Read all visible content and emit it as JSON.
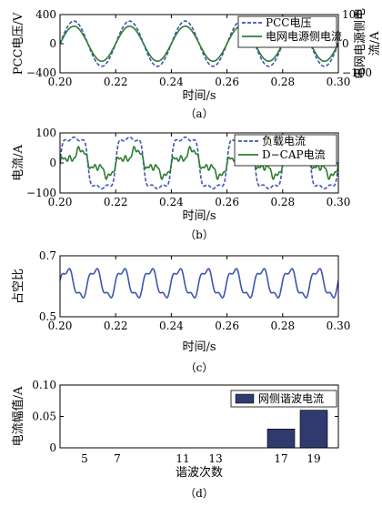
{
  "chart_data": [
    {
      "id": "a",
      "type": "line",
      "caption": "（a）",
      "xlabel": "时间/s",
      "ylabel": "PCC电压/V",
      "ylabel_right": "电网电源侧电流/A",
      "xlim": [
        0.2,
        0.3
      ],
      "ylim": [
        -400,
        400
      ],
      "ylim_right": [
        -100,
        100
      ],
      "xticks": [
        0.2,
        0.22,
        0.24,
        0.26,
        0.28,
        0.3
      ],
      "xtick_labels": [
        "0.20",
        "0.22",
        "0.24",
        "0.26",
        "0.28",
        "0.30"
      ],
      "yticks": [
        -400,
        0,
        400
      ],
      "ytick_labels": [
        "−400",
        "0",
        "400"
      ],
      "yticks_right": [
        -100,
        0,
        100
      ],
      "ytick_labels_right": [
        "−100",
        "0",
        "100"
      ],
      "legend_position": "top-right",
      "series": [
        {
          "name": "PCC电压",
          "axis": "left",
          "color": "#3d56b0",
          "dash": "4,2",
          "waveform": "sine",
          "amplitude": 311,
          "frequency_hz": 50,
          "phase_deg": 0
        },
        {
          "name": "电网电源侧电流",
          "axis": "right",
          "color": "#2e7d32",
          "dash": "",
          "waveform": "sine",
          "amplitude": 60,
          "frequency_hz": 50,
          "phase_deg": 0
        }
      ]
    },
    {
      "id": "b",
      "type": "line",
      "caption": "（b）",
      "xlabel": "时间/s",
      "ylabel": "电流/A",
      "xlim": [
        0.2,
        0.3
      ],
      "ylim": [
        -100,
        100
      ],
      "xticks": [
        0.2,
        0.22,
        0.24,
        0.26,
        0.28,
        0.3
      ],
      "xtick_labels": [
        "0.20",
        "0.22",
        "0.24",
        "0.26",
        "0.28",
        "0.30"
      ],
      "yticks": [
        -100,
        0,
        100
      ],
      "ytick_labels": [
        "−100",
        "0",
        "100"
      ],
      "legend_position": "top-right",
      "series": [
        {
          "name": "负载电流",
          "color": "#3d56b0",
          "dash": "4,2",
          "waveform": "load",
          "amplitude": 80,
          "frequency_hz": 50,
          "phase_deg": 0
        },
        {
          "name": "D−CAP电流",
          "color": "#2e7d32",
          "dash": "",
          "waveform": "dcap",
          "amplitude": 45,
          "frequency_hz": 50,
          "phase_deg": 0
        }
      ]
    },
    {
      "id": "c",
      "type": "line",
      "caption": "（c）",
      "xlabel": "时间/s",
      "ylabel": "占空比",
      "xlim": [
        0.2,
        0.3
      ],
      "ylim": [
        0.5,
        0.7
      ],
      "xticks": [
        0.2,
        0.22,
        0.24,
        0.26,
        0.28,
        0.3
      ],
      "xtick_labels": [
        "0.20",
        "0.22",
        "0.24",
        "0.26",
        "0.28",
        "0.30"
      ],
      "yticks": [
        0.5,
        0.7
      ],
      "ytick_labels": [
        "0.5",
        "0.7"
      ],
      "series": [
        {
          "name": "",
          "color": "#3d56b0",
          "dash": "",
          "waveform": "duty",
          "offset": 0.61,
          "amplitude": 0.045,
          "frequency_hz": 100,
          "phase_deg": 0
        }
      ]
    },
    {
      "id": "d",
      "type": "bar",
      "caption": "（d）",
      "xlabel": "谐波次数",
      "ylabel": "电流幅值/A",
      "categories": [
        "5",
        "7",
        "11",
        "13",
        "17",
        "19"
      ],
      "values": [
        0.0,
        0.0,
        0.0,
        0.0,
        0.03,
        0.06
      ],
      "ylim": [
        0,
        0.1
      ],
      "yticks": [
        0,
        0.05,
        0.1
      ],
      "ytick_labels": [
        "0",
        "0.05",
        "0.10"
      ],
      "bar_color": "#2f3a6e",
      "legend_position": "top-right",
      "series": [
        {
          "name": "网侧谐波电流",
          "values": [
            0.0,
            0.0,
            0.0,
            0.0,
            0.03,
            0.06
          ]
        }
      ]
    }
  ]
}
